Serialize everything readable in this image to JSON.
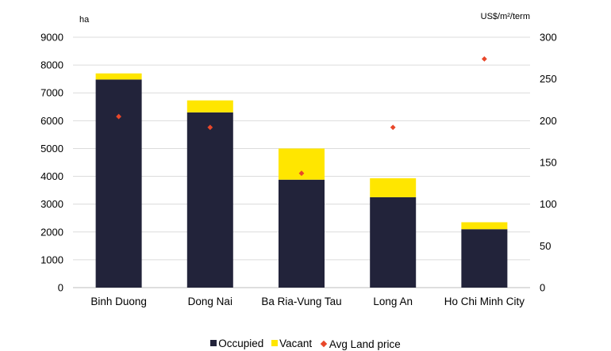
{
  "chart_data": {
    "type": "bar",
    "stacked": true,
    "categories": [
      "Binh Duong",
      "Dong Nai",
      "Ba Ria-Vung Tau",
      "Long An",
      "Ho Chi Minh City"
    ],
    "series": [
      {
        "name": "Occupied",
        "axis": "left",
        "color": "#22233a",
        "values": [
          7480,
          6300,
          3880,
          3250,
          2100
        ]
      },
      {
        "name": "Vacant",
        "axis": "left",
        "color": "#ffe600",
        "values": [
          220,
          430,
          1120,
          680,
          250
        ]
      },
      {
        "name": "Avg Land price",
        "axis": "right",
        "type": "scatter",
        "color": "#e8472a",
        "values": [
          205,
          192,
          137,
          192,
          274
        ]
      }
    ],
    "y_left": {
      "label": "ha",
      "min": 0,
      "max": 9000,
      "ticks": [
        0,
        1000,
        2000,
        3000,
        4000,
        5000,
        6000,
        7000,
        8000,
        9000
      ]
    },
    "y_right": {
      "label": "US$/m²/term",
      "min": 0,
      "max": 300,
      "ticks": [
        0,
        50,
        100,
        150,
        200,
        250,
        300
      ]
    },
    "grid": true,
    "legend_position": "bottom"
  }
}
